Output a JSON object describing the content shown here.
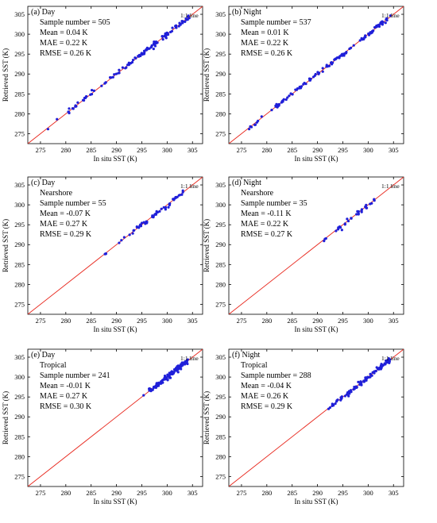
{
  "colors": {
    "line": "#e8281e",
    "points": "#1f1fd9",
    "axis": "#000000",
    "background": "#ffffff"
  },
  "chart_data": [
    {
      "type": "scatter",
      "panel": "(a)",
      "title": "(a) Day",
      "subtitle": "",
      "stats": [
        "Sample number = 505",
        "Mean = 0.04 K",
        "MAE = 0.22 K",
        "RMSE = 0.26 K"
      ],
      "line_label": "1:1 line",
      "xlabel": "In situ SST (K)",
      "ylabel": "Retrieved SST (K)",
      "xlim": [
        272.5,
        307
      ],
      "ylim": [
        272.5,
        307
      ],
      "xticks": [
        275,
        280,
        285,
        290,
        295,
        300,
        305
      ],
      "yticks": [
        275,
        280,
        285,
        290,
        295,
        300,
        305
      ],
      "grid": false,
      "reference_line": "y = x",
      "points": {
        "x_range": [
          275.0,
          304.5
        ],
        "count": 120,
        "seed": 11,
        "slope": 1.0,
        "intercept": 0.04,
        "scatter_sd": 0.28,
        "density": "dense along the 1:1 line, densest between 298 and 304 K"
      }
    },
    {
      "type": "scatter",
      "panel": "(b)",
      "title": "(b) Night",
      "subtitle": "",
      "stats": [
        "Sample number = 537",
        "Mean = 0.01 K",
        "MAE = 0.22 K",
        "RMSE = 0.26 K"
      ],
      "line_label": "1:1 line",
      "xlabel": "In situ SST (K)",
      "ylabel": "Retrieved SST (K)",
      "xlim": [
        272.5,
        307
      ],
      "ylim": [
        272.5,
        307
      ],
      "xticks": [
        275,
        280,
        285,
        290,
        295,
        300,
        305
      ],
      "yticks": [
        275,
        280,
        285,
        290,
        295,
        300,
        305
      ],
      "grid": false,
      "reference_line": "y = x",
      "points": {
        "x_range": [
          275.0,
          304.5
        ],
        "count": 120,
        "seed": 23,
        "slope": 1.0,
        "intercept": 0.01,
        "scatter_sd": 0.28,
        "density": "dense along the 1:1 line, densest between 298 and 304 K"
      }
    },
    {
      "type": "scatter",
      "panel": "(c)",
      "title": "(c) Day",
      "subtitle": "Nearshore",
      "stats": [
        "Sample number = 55",
        "Mean = -0.07 K",
        "MAE = 0.27 K",
        "RMSE = 0.29 K"
      ],
      "line_label": "1:1 line",
      "xlabel": "In situ SST (K)",
      "ylabel": "Retrieved SST (K)",
      "xlim": [
        272.5,
        307
      ],
      "ylim": [
        272.5,
        307
      ],
      "xticks": [
        275,
        280,
        285,
        290,
        295,
        300,
        305
      ],
      "yticks": [
        275,
        280,
        285,
        290,
        295,
        300,
        305
      ],
      "grid": false,
      "reference_line": "y = x",
      "points": {
        "x_range": [
          286.8,
          303.2
        ],
        "count": 55,
        "seed": 37,
        "slope": 1.0,
        "intercept": -0.07,
        "scatter_sd": 0.3,
        "density": "spread between 287 and 303 K"
      }
    },
    {
      "type": "scatter",
      "panel": "(d)",
      "title": "(d) Night",
      "subtitle": "Nearshore",
      "stats": [
        "Sample number = 35",
        "Mean = -0.11 K",
        "MAE = 0.22 K",
        "RMSE = 0.27 K"
      ],
      "line_label": "1:1 line",
      "xlabel": "In situ SST (K)",
      "ylabel": "Retrieved SST (K)",
      "xlim": [
        272.5,
        307
      ],
      "ylim": [
        272.5,
        307
      ],
      "xticks": [
        275,
        280,
        285,
        290,
        295,
        300,
        305
      ],
      "yticks": [
        275,
        280,
        285,
        290,
        295,
        300,
        305
      ],
      "grid": false,
      "reference_line": "y = x",
      "points": {
        "x_range": [
          289.8,
          301.8
        ],
        "count": 35,
        "seed": 41,
        "slope": 1.0,
        "intercept": -0.11,
        "scatter_sd": 0.28,
        "density": "spread between 290 and 302 K"
      }
    },
    {
      "type": "scatter",
      "panel": "(e)",
      "title": "(e) Day",
      "subtitle": "Tropical",
      "stats": [
        "Sample number = 241",
        "Mean = -0.01 K",
        "MAE = 0.27 K",
        "RMSE = 0.30 K"
      ],
      "line_label": "1:1 line",
      "xlabel": "In situ SST (K)",
      "ylabel": "Retrieved SST (K)",
      "xlim": [
        272.5,
        307
      ],
      "ylim": [
        272.5,
        307
      ],
      "xticks": [
        275,
        280,
        285,
        290,
        295,
        300,
        305
      ],
      "yticks": [
        275,
        280,
        285,
        290,
        295,
        300,
        305
      ],
      "grid": false,
      "reference_line": "y = x",
      "points": {
        "x_range": [
          295.0,
          304.2
        ],
        "count": 110,
        "seed": 53,
        "slope": 1.0,
        "intercept": -0.01,
        "scatter_sd": 0.32,
        "density": "dense cluster between 298 and 304 K"
      }
    },
    {
      "type": "scatter",
      "panel": "(f)",
      "title": "(f) Night",
      "subtitle": "Tropical",
      "stats": [
        "Sample number = 288",
        "Mean = -0.04 K",
        "MAE = 0.26 K",
        "RMSE = 0.29 K"
      ],
      "line_label": "1:1 line",
      "xlabel": "In situ SST (K)",
      "ylabel": "Retrieved SST (K)",
      "xlim": [
        272.5,
        307
      ],
      "ylim": [
        272.5,
        307
      ],
      "xticks": [
        275,
        280,
        285,
        290,
        295,
        300,
        305
      ],
      "yticks": [
        275,
        280,
        285,
        290,
        295,
        300,
        305
      ],
      "grid": false,
      "reference_line": "y = x",
      "points": {
        "x_range": [
          291.5,
          304.3
        ],
        "count": 110,
        "seed": 67,
        "slope": 1.0,
        "intercept": -0.04,
        "scatter_sd": 0.3,
        "density": "dense cluster between 298 and 304 K, sparse below 296 K"
      }
    }
  ]
}
